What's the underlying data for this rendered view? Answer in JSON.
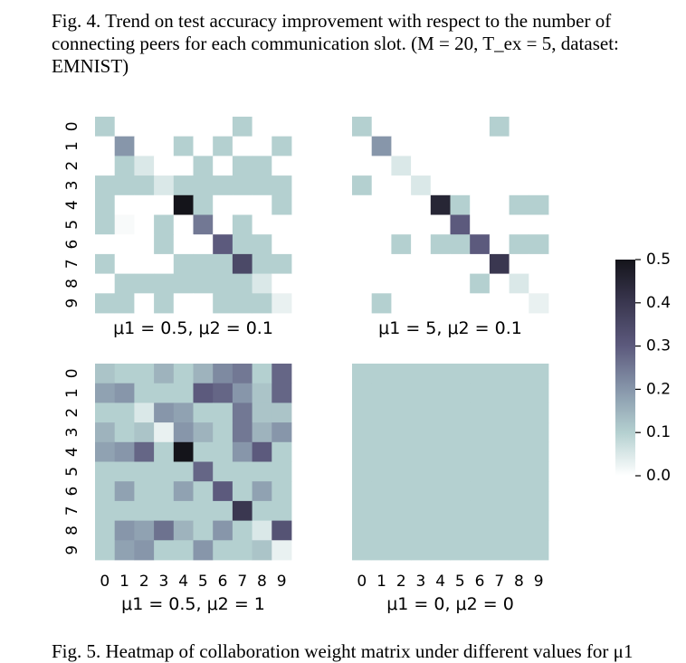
{
  "caption_top": "Fig. 4.  Trend on test accuracy improvement with respect to the number of connecting peers for each communication slot. (M = 20, T_ex = 5, dataset: EMNIST)",
  "caption_bottom": "Fig. 5.  Heatmap of collaboration weight matrix under different values for μ1",
  "chart_data": [
    {
      "type": "heatmap",
      "title": "μ1 = 0.5, μ2 = 0.1",
      "rows": [
        "0",
        "1",
        "2",
        "3",
        "4",
        "5",
        "6",
        "7",
        "8",
        "9"
      ],
      "cols": [
        "0",
        "1",
        "2",
        "3",
        "4",
        "5",
        "6",
        "7",
        "8",
        "9"
      ],
      "values": [
        [
          0.1,
          0,
          0,
          0,
          0,
          0,
          0,
          0.1,
          0,
          0
        ],
        [
          0,
          0.2,
          0,
          0,
          0.1,
          0,
          0.1,
          0,
          0,
          0.1
        ],
        [
          0,
          0.1,
          0.05,
          0,
          0,
          0.1,
          0,
          0.1,
          0.1,
          0
        ],
        [
          0.1,
          0.1,
          0.1,
          0.05,
          0.1,
          0.1,
          0.1,
          0.1,
          0.1,
          0.1
        ],
        [
          0.1,
          0,
          0,
          0,
          0.5,
          0.1,
          0,
          0,
          0,
          0.1
        ],
        [
          0.1,
          0.01,
          0,
          0.1,
          0,
          0.25,
          0,
          0.1,
          0,
          0
        ],
        [
          0,
          0,
          0,
          0.1,
          0,
          0,
          0.3,
          0.1,
          0.1,
          0
        ],
        [
          0.1,
          0,
          0,
          0,
          0.1,
          0.1,
          0.1,
          0.35,
          0.1,
          0.1
        ],
        [
          0,
          0.1,
          0.1,
          0.1,
          0.1,
          0.1,
          0.1,
          0.1,
          0.05,
          0
        ],
        [
          0.1,
          0.1,
          0,
          0.1,
          0,
          0,
          0.1,
          0.1,
          0.1,
          0.03
        ]
      ]
    },
    {
      "type": "heatmap",
      "title": "μ1 = 5, μ2 = 0.1",
      "rows": [
        "0",
        "1",
        "2",
        "3",
        "4",
        "5",
        "6",
        "7",
        "8",
        "9"
      ],
      "cols": [
        "0",
        "1",
        "2",
        "3",
        "4",
        "5",
        "6",
        "7",
        "8",
        "9"
      ],
      "values": [
        [
          0.1,
          0,
          0,
          0,
          0,
          0,
          0,
          0.1,
          0,
          0
        ],
        [
          0,
          0.2,
          0,
          0,
          0,
          0,
          0,
          0,
          0,
          0
        ],
        [
          0,
          0,
          0.05,
          0,
          0,
          0,
          0,
          0,
          0,
          0
        ],
        [
          0.1,
          0,
          0,
          0.05,
          0,
          0,
          0,
          0,
          0,
          0
        ],
        [
          0,
          0,
          0,
          0,
          0.45,
          0.1,
          0,
          0,
          0.1,
          0.1
        ],
        [
          0,
          0,
          0,
          0,
          0,
          0.3,
          0,
          0,
          0,
          0
        ],
        [
          0,
          0,
          0.1,
          0,
          0.1,
          0.1,
          0.3,
          0,
          0.1,
          0.1
        ],
        [
          0,
          0,
          0,
          0,
          0,
          0,
          0,
          0.4,
          0,
          0
        ],
        [
          0,
          0,
          0,
          0,
          0,
          0,
          0.1,
          0,
          0.05,
          0
        ],
        [
          0,
          0.1,
          0,
          0,
          0,
          0,
          0,
          0,
          0,
          0.03
        ]
      ]
    },
    {
      "type": "heatmap",
      "title": "μ1 = 0.5, μ2 = 1",
      "rows": [
        "0",
        "1",
        "2",
        "3",
        "4",
        "5",
        "6",
        "7",
        "8",
        "9"
      ],
      "cols": [
        "0",
        "1",
        "2",
        "3",
        "4",
        "5",
        "6",
        "7",
        "8",
        "9"
      ],
      "values": [
        [
          0.12,
          0.1,
          0.1,
          0.15,
          0.1,
          0.15,
          0.22,
          0.25,
          0.1,
          0.28
        ],
        [
          0.18,
          0.2,
          0.1,
          0.1,
          0.1,
          0.3,
          0.28,
          0.2,
          0.12,
          0.28
        ],
        [
          0.1,
          0.1,
          0.05,
          0.2,
          0.18,
          0.1,
          0.1,
          0.25,
          0.12,
          0.12
        ],
        [
          0.15,
          0.1,
          0.12,
          0.03,
          0.2,
          0.15,
          0.1,
          0.25,
          0.15,
          0.2
        ],
        [
          0.18,
          0.2,
          0.28,
          0.1,
          0.5,
          0.1,
          0.1,
          0.2,
          0.3,
          0.1
        ],
        [
          0.1,
          0.1,
          0.1,
          0.1,
          0.1,
          0.28,
          0.1,
          0.1,
          0.1,
          0.1
        ],
        [
          0.1,
          0.18,
          0.1,
          0.1,
          0.18,
          0.1,
          0.3,
          0.1,
          0.18,
          0.1
        ],
        [
          0.1,
          0.1,
          0.1,
          0.1,
          0.1,
          0.1,
          0.1,
          0.4,
          0.1,
          0.1
        ],
        [
          0.1,
          0.2,
          0.18,
          0.26,
          0.15,
          0.1,
          0.2,
          0.1,
          0.05,
          0.32
        ],
        [
          0.1,
          0.18,
          0.2,
          0.1,
          0.1,
          0.2,
          0.1,
          0.1,
          0.12,
          0.03
        ]
      ]
    },
    {
      "type": "heatmap",
      "title": "μ1 = 0, μ2 = 0",
      "rows": [
        "0",
        "1",
        "2",
        "3",
        "4",
        "5",
        "6",
        "7",
        "8",
        "9"
      ],
      "cols": [
        "0",
        "1",
        "2",
        "3",
        "4",
        "5",
        "6",
        "7",
        "8",
        "9"
      ],
      "values": [
        [
          0.1,
          0.1,
          0.1,
          0.1,
          0.1,
          0.1,
          0.1,
          0.1,
          0.1,
          0.1
        ],
        [
          0.1,
          0.1,
          0.1,
          0.1,
          0.1,
          0.1,
          0.1,
          0.1,
          0.1,
          0.1
        ],
        [
          0.1,
          0.1,
          0.1,
          0.1,
          0.1,
          0.1,
          0.1,
          0.1,
          0.1,
          0.1
        ],
        [
          0.1,
          0.1,
          0.1,
          0.1,
          0.1,
          0.1,
          0.1,
          0.1,
          0.1,
          0.1
        ],
        [
          0.1,
          0.1,
          0.1,
          0.1,
          0.1,
          0.1,
          0.1,
          0.1,
          0.1,
          0.1
        ],
        [
          0.1,
          0.1,
          0.1,
          0.1,
          0.1,
          0.1,
          0.1,
          0.1,
          0.1,
          0.1
        ],
        [
          0.1,
          0.1,
          0.1,
          0.1,
          0.1,
          0.1,
          0.1,
          0.1,
          0.1,
          0.1
        ],
        [
          0.1,
          0.1,
          0.1,
          0.1,
          0.1,
          0.1,
          0.1,
          0.1,
          0.1,
          0.1
        ],
        [
          0.1,
          0.1,
          0.1,
          0.1,
          0.1,
          0.1,
          0.1,
          0.1,
          0.1,
          0.1
        ],
        [
          0.1,
          0.1,
          0.1,
          0.1,
          0.1,
          0.1,
          0.1,
          0.1,
          0.1,
          0.1
        ]
      ]
    }
  ],
  "colorbar": {
    "ticks": [
      "0.5",
      "0.4",
      "0.3",
      "0.2",
      "0.1",
      "0.0"
    ],
    "range": [
      0,
      0.5
    ],
    "colormap": "bone_r"
  }
}
